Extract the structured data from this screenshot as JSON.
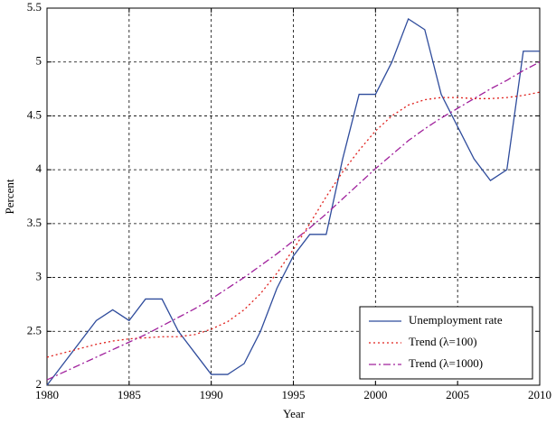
{
  "chart_data": {
    "type": "line",
    "xlabel": "Year",
    "ylabel": "Percent",
    "x": [
      1980,
      1981,
      1982,
      1983,
      1984,
      1985,
      1986,
      1987,
      1988,
      1989,
      1990,
      1991,
      1992,
      1993,
      1994,
      1995,
      1996,
      1997,
      1998,
      1999,
      2000,
      2001,
      2002,
      2003,
      2004,
      2005,
      2006,
      2007,
      2008,
      2009,
      2010
    ],
    "series": [
      {
        "name": "Unemployment rate",
        "color": "#2f4c9c",
        "linestyle": "solid",
        "values": [
          2.0,
          2.2,
          2.4,
          2.6,
          2.7,
          2.6,
          2.8,
          2.8,
          2.5,
          2.3,
          2.1,
          2.1,
          2.2,
          2.5,
          2.9,
          3.2,
          3.4,
          3.4,
          4.1,
          4.7,
          4.7,
          5.0,
          5.4,
          5.3,
          4.7,
          4.4,
          4.1,
          3.9,
          4.0,
          5.1,
          5.1
        ]
      },
      {
        "name": "Trend (λ=100)",
        "color": "#e0201c",
        "linestyle": "dotted",
        "values": [
          2.26,
          2.3,
          2.34,
          2.38,
          2.41,
          2.43,
          2.44,
          2.45,
          2.45,
          2.47,
          2.52,
          2.59,
          2.7,
          2.85,
          3.04,
          3.26,
          3.5,
          3.75,
          3.98,
          4.18,
          4.36,
          4.5,
          4.6,
          4.65,
          4.67,
          4.67,
          4.66,
          4.66,
          4.67,
          4.69,
          4.72
        ]
      },
      {
        "name": "Trend (λ=1000)",
        "color": "#a0209c",
        "linestyle": "dashdot",
        "values": [
          2.05,
          2.12,
          2.19,
          2.26,
          2.33,
          2.4,
          2.47,
          2.55,
          2.63,
          2.71,
          2.8,
          2.9,
          3.0,
          3.11,
          3.22,
          3.34,
          3.46,
          3.59,
          3.73,
          3.87,
          4.01,
          4.14,
          4.27,
          4.38,
          4.48,
          4.57,
          4.66,
          4.75,
          4.83,
          4.92,
          5.0
        ]
      }
    ],
    "xlim": [
      1980,
      2010
    ],
    "xticks": [
      1980,
      1985,
      1990,
      1995,
      2000,
      2005,
      2010
    ],
    "ylim": [
      2,
      5.5
    ],
    "yticks": [
      2,
      2.5,
      3,
      3.5,
      4,
      4.5,
      5,
      5.5
    ],
    "grid": true,
    "legend": "lower right"
  }
}
